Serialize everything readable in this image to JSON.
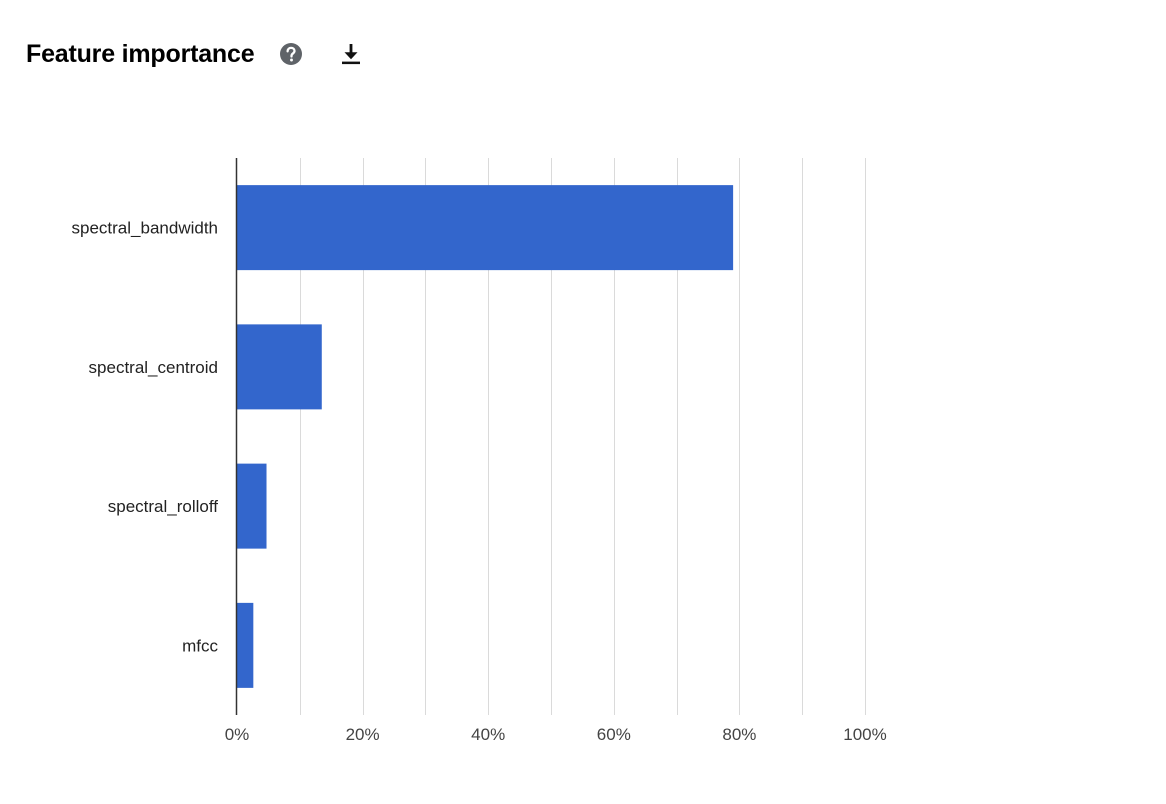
{
  "header": {
    "title": "Feature importance",
    "help_icon": "help-circle-icon",
    "download_icon": "download-icon"
  },
  "colors": {
    "bar": "#3366cc",
    "gridline": "#dadada",
    "axis": "#333333",
    "tick_label": "#444444"
  },
  "chart_data": {
    "type": "bar",
    "orientation": "horizontal",
    "categories": [
      "spectral_bandwidth",
      "spectral_centroid",
      "spectral_rolloff",
      "mfcc"
    ],
    "values": [
      79,
      13.5,
      4.7,
      2.6
    ],
    "unit": "%",
    "xlim": [
      0,
      100
    ],
    "xticks": [
      0,
      20,
      40,
      60,
      80,
      100
    ],
    "xtick_labels": [
      "0%",
      "20%",
      "40%",
      "60%",
      "80%",
      "100%"
    ],
    "grid": true,
    "title": "",
    "xlabel": "",
    "ylabel": ""
  }
}
